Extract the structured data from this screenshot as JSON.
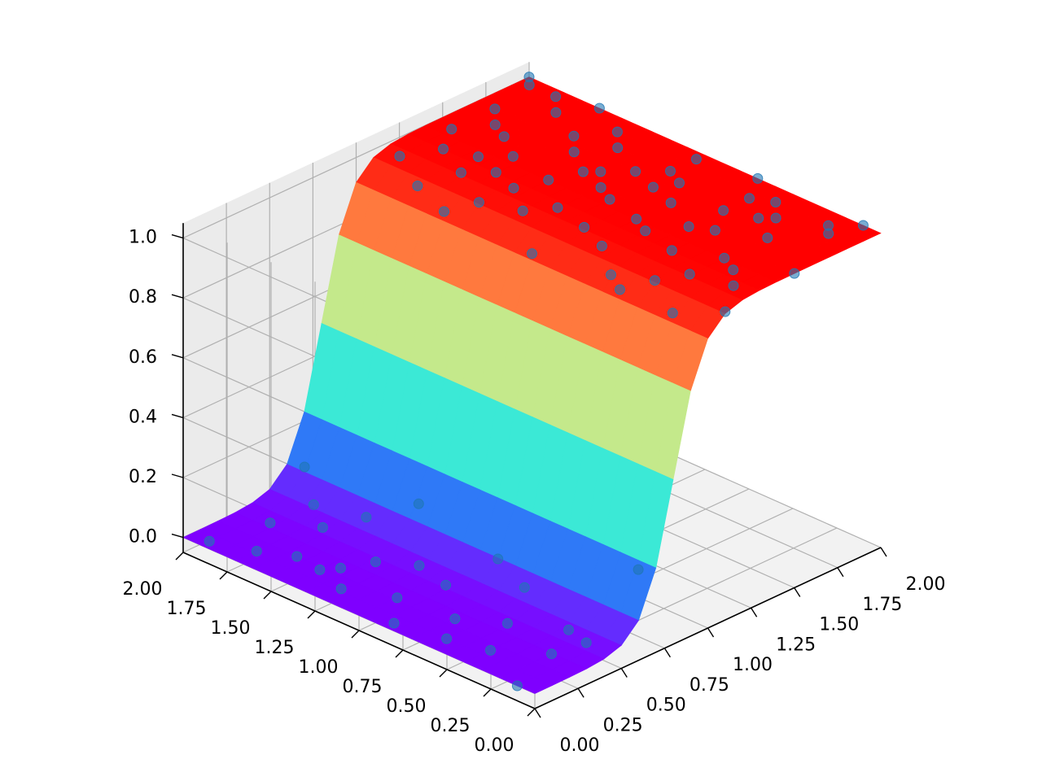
{
  "chart_data": {
    "type": "surface3d",
    "title": "",
    "xlabel": "",
    "ylabel": "",
    "zlabel": "",
    "xlim": [
      0,
      2
    ],
    "ylim": [
      0,
      2
    ],
    "zlim": [
      -0.05,
      1.05
    ],
    "x_ticks": [
      "0.00",
      "0.25",
      "0.50",
      "0.75",
      "1.00",
      "1.25",
      "1.50",
      "1.75",
      "2.00"
    ],
    "y_ticks": [
      "0.00",
      "0.25",
      "0.50",
      "0.75",
      "1.00",
      "1.25",
      "1.50",
      "1.75",
      "2.00"
    ],
    "z_ticks": [
      "0.0",
      "0.2",
      "0.4",
      "0.6",
      "0.8",
      "1.0"
    ],
    "surface": {
      "function": "z = 1 / (1 + exp(-12 * (x - 0.8)))",
      "colormap": "rainbow",
      "x_range": [
        0,
        2
      ],
      "y_range": [
        0,
        2
      ],
      "grid_steps": 20
    },
    "scatter": {
      "color": "#1f77b4",
      "points": [
        [
          0.05,
          1.9,
          0.0
        ],
        [
          0.12,
          1.7,
          0.0
        ],
        [
          0.18,
          1.4,
          0.0
        ],
        [
          0.1,
          1.2,
          0.01
        ],
        [
          0.22,
          1.0,
          0.0
        ],
        [
          0.3,
          1.8,
          0.02
        ],
        [
          0.25,
          0.7,
          0.0
        ],
        [
          0.35,
          0.5,
          0.01
        ],
        [
          0.4,
          1.6,
          0.03
        ],
        [
          0.45,
          1.1,
          0.02
        ],
        [
          0.5,
          0.3,
          0.0
        ],
        [
          0.55,
          1.5,
          0.05
        ],
        [
          0.15,
          0.4,
          0.0
        ],
        [
          0.3,
          0.2,
          0.0
        ],
        [
          0.6,
          0.8,
          0.08
        ],
        [
          0.65,
          1.3,
          0.12
        ],
        [
          0.0,
          0.1,
          0.0
        ],
        [
          0.2,
          1.55,
          0.0
        ],
        [
          0.4,
          0.9,
          0.02
        ],
        [
          0.5,
          1.75,
          0.04
        ],
        [
          0.7,
          0.1,
          0.2
        ],
        [
          0.1,
          0.6,
          0.0
        ],
        [
          0.35,
          1.25,
          0.02
        ],
        [
          0.05,
          0.85,
          0.0
        ],
        [
          0.6,
          1.9,
          0.1
        ],
        [
          0.45,
          0.15,
          0.01
        ],
        [
          0.25,
          1.35,
          0.0
        ],
        [
          0.55,
          0.6,
          0.05
        ],
        [
          1.0,
          0.2,
          0.95
        ],
        [
          1.1,
          0.4,
          0.98
        ],
        [
          1.2,
          0.9,
          1.0
        ],
        [
          1.3,
          1.5,
          1.0
        ],
        [
          1.4,
          0.3,
          1.0
        ],
        [
          1.5,
          1.1,
          1.0
        ],
        [
          1.6,
          1.8,
          1.0
        ],
        [
          1.7,
          0.6,
          1.0
        ],
        [
          1.8,
          1.3,
          1.0
        ],
        [
          1.9,
          0.2,
          1.0
        ],
        [
          2.0,
          1.6,
          1.0
        ],
        [
          1.05,
          1.7,
          0.97
        ],
        [
          1.15,
          1.2,
          0.99
        ],
        [
          1.25,
          0.1,
          1.0
        ],
        [
          1.35,
          0.7,
          1.0
        ],
        [
          1.45,
          1.9,
          1.0
        ],
        [
          1.55,
          0.5,
          1.0
        ],
        [
          1.65,
          1.4,
          1.0
        ],
        [
          1.75,
          0.9,
          1.0
        ],
        [
          1.85,
          1.7,
          1.0
        ],
        [
          1.95,
          1.0,
          1.0
        ],
        [
          1.0,
          1.0,
          0.94
        ],
        [
          1.1,
          0.0,
          0.98
        ],
        [
          1.2,
          1.6,
          1.0
        ],
        [
          1.3,
          0.5,
          1.0
        ],
        [
          1.4,
          1.3,
          1.0
        ],
        [
          1.5,
          0.0,
          1.0
        ],
        [
          1.6,
          0.8,
          1.0
        ],
        [
          1.7,
          1.9,
          1.0
        ],
        [
          1.8,
          0.4,
          1.0
        ],
        [
          1.9,
          1.4,
          1.0
        ],
        [
          2.0,
          0.7,
          1.0
        ],
        [
          1.05,
          0.6,
          0.96
        ],
        [
          1.15,
          1.9,
          0.99
        ],
        [
          1.25,
          1.1,
          1.0
        ],
        [
          1.35,
          0.2,
          1.0
        ],
        [
          1.45,
          1.0,
          1.0
        ],
        [
          1.55,
          1.7,
          1.0
        ],
        [
          1.65,
          0.3,
          1.0
        ],
        [
          1.75,
          1.5,
          1.0
        ],
        [
          1.85,
          0.6,
          1.0
        ],
        [
          1.95,
          1.8,
          1.0
        ],
        [
          1.2,
          0.3,
          1.0
        ],
        [
          1.4,
          0.8,
          1.0
        ],
        [
          1.6,
          1.2,
          1.0
        ],
        [
          1.8,
          1.0,
          1.0
        ],
        [
          2.0,
          0.1,
          1.0
        ],
        [
          1.1,
          1.4,
          0.98
        ],
        [
          1.3,
          1.8,
          1.0
        ],
        [
          1.5,
          0.6,
          1.0
        ],
        [
          1.7,
          1.1,
          1.0
        ],
        [
          1.9,
          0.5,
          1.0
        ],
        [
          2.0,
          2.0,
          1.0
        ],
        [
          1.95,
          1.95,
          1.0
        ],
        [
          1.0,
          1.5,
          0.95
        ],
        [
          1.0,
          0.5,
          0.95
        ],
        [
          1.25,
          1.35,
          1.0
        ],
        [
          1.45,
          1.55,
          1.0
        ],
        [
          1.65,
          0.95,
          1.0
        ],
        [
          1.85,
          0.15,
          1.0
        ],
        [
          1.15,
          0.75,
          0.99
        ],
        [
          1.35,
          1.65,
          1.0
        ],
        [
          1.55,
          1.25,
          1.0
        ],
        [
          1.75,
          0.45,
          1.0
        ]
      ]
    }
  }
}
